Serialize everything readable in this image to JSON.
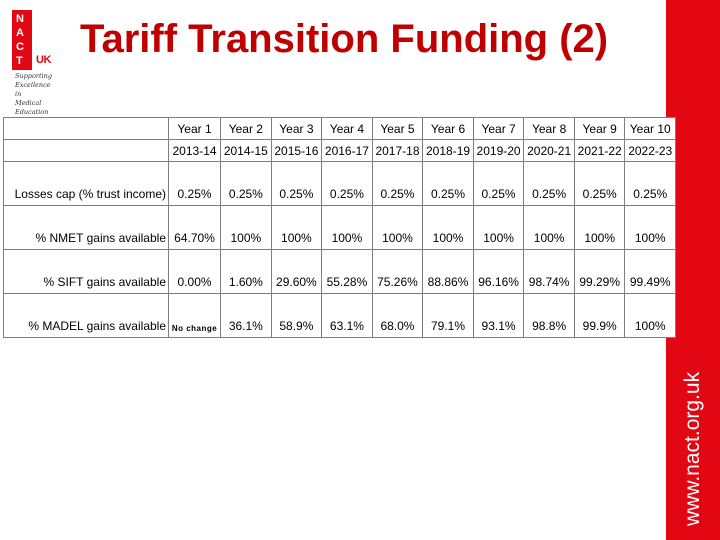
{
  "logo": {
    "letters": [
      "N",
      "A",
      "C",
      "T"
    ],
    "suffix": "UK",
    "tagline": [
      "Supporting",
      "Excellence",
      "in",
      "Medical",
      "Education"
    ]
  },
  "title": "Tariff Transition Funding (2)",
  "sidebar_text": "www.nact.org.uk",
  "table": {
    "years": [
      "Year 1",
      "Year 2",
      "Year 3",
      "Year 4",
      "Year 5",
      "Year 6",
      "Year 7",
      "Year 8",
      "Year 9",
      "Year 10"
    ],
    "periods": [
      "2013-14",
      "2014-15",
      "2015-16",
      "2016-17",
      "2017-18",
      "2018-19",
      "2019-20",
      "2020-21",
      "2021-22",
      "2022-23"
    ],
    "rows": [
      {
        "label": "Losses cap (% trust income)",
        "values": [
          "0.25%",
          "0.25%",
          "0.25%",
          "0.25%",
          "0.25%",
          "0.25%",
          "0.25%",
          "0.25%",
          "0.25%",
          "0.25%"
        ]
      },
      {
        "label": "% NMET gains available",
        "values": [
          "64.70%",
          "100%",
          "100%",
          "100%",
          "100%",
          "100%",
          "100%",
          "100%",
          "100%",
          "100%"
        ]
      },
      {
        "label": "% SIFT gains available",
        "values": [
          "0.00%",
          "1.60%",
          "29.60%",
          "55.28%",
          "75.26%",
          "88.86%",
          "96.16%",
          "98.74%",
          "99.29%",
          "99.49%"
        ]
      },
      {
        "label": "% MADEL gains available",
        "values": [
          "No change",
          "36.1%",
          "58.9%",
          "63.1%",
          "68.0%",
          "79.1%",
          "93.1%",
          "98.8%",
          "99.9%",
          "100%"
        ]
      }
    ]
  },
  "colors": {
    "accent": "#e30613",
    "title": "#c00000"
  }
}
